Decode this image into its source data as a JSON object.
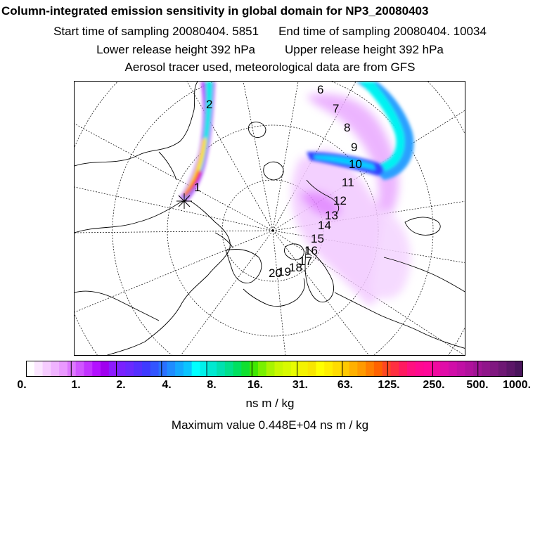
{
  "header": {
    "title": "Column-integrated emission sensitivity in global domain for NP3_20080403",
    "start_label": "Start time of sampling 20080404.  5851",
    "end_label": "End time of sampling 20080404. 10034",
    "lower_label": "Lower release height  392 hPa",
    "upper_label": "Upper release height  392 hPa",
    "info": "Aerosol tracer used, meteorological data are from GFS"
  },
  "map": {
    "day_labels": [
      "1",
      "2",
      "6",
      "7",
      "8",
      "9",
      "10",
      "11",
      "12",
      "13",
      "14",
      "15",
      "16",
      "17",
      "18",
      "19",
      "20"
    ],
    "release_marker": "release-location"
  },
  "colorbar": {
    "ticks": [
      "0.",
      "1.",
      "2.",
      "4.",
      "8.",
      "16.",
      "31.",
      "63.",
      "125.",
      "250.",
      "500.",
      "1000."
    ],
    "units": "ns m / kg",
    "colors": [
      "#ffffff",
      "#fbe6ff",
      "#f6ccff",
      "#f0b3ff",
      "#ea99ff",
      "#dd77ff",
      "#d055ff",
      "#c233ff",
      "#b311ff",
      "#a000ee",
      "#8c1aff",
      "#7a22ff",
      "#6a2aff",
      "#5530ff",
      "#3f3aff",
      "#3355ff",
      "#2a70ff",
      "#1f8cff",
      "#14a8ff",
      "#0ac4ff",
      "#00ffff",
      "#00f0ea",
      "#00e8d0",
      "#00e0b0",
      "#00e08c",
      "#00e060",
      "#10e030",
      "#40e800",
      "#78f000",
      "#a8f400",
      "#c8f800",
      "#d8fa00",
      "#e8fc00",
      "#f4f200",
      "#f8e600",
      "#ffff00",
      "#ffee00",
      "#ffdc00",
      "#ffc800",
      "#ffb000",
      "#ff9a00",
      "#ff7e00",
      "#ff6200",
      "#ff4820",
      "#ff3040",
      "#ff1a60",
      "#ff1080",
      "#ff0a90",
      "#ff0898",
      "#f00aa0",
      "#e00ca8",
      "#d00ea8",
      "#c010a4",
      "#b0129c",
      "#a01494",
      "#90168a",
      "#801880",
      "#6e1874",
      "#5c1668",
      "#4a145c"
    ]
  },
  "footer": {
    "max_value": "Maximum value  0.448E+04 ns m / kg"
  }
}
